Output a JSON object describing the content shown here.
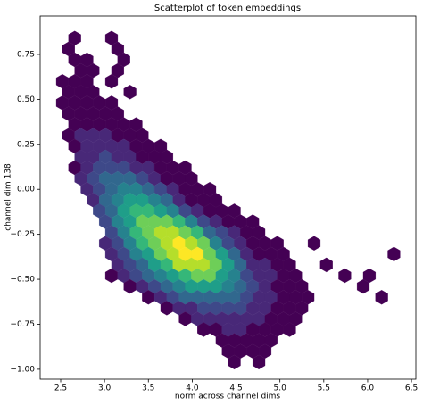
{
  "chart_data": {
    "type": "hexbin",
    "title": "Scatterplot of token embeddings",
    "x_label": "norm across channel dims",
    "y_label": "channel dim 138",
    "xlim": [
      2.266,
      6.55
    ],
    "ylim": [
      -1.055,
      0.963
    ],
    "xticks": [
      2.5,
      {
        "value": 3,
        "label": "3.0"
      },
      3.5,
      {
        "value": 4,
        "label": "4.0"
      },
      4.5,
      {
        "value": 5,
        "label": "5.0"
      },
      5.5,
      {
        "value": 6,
        "label": "6.0"
      },
      6.5
    ],
    "yticks": [
      {
        "value": -1,
        "label": "−1.00"
      },
      {
        "value": -0.75,
        "label": "−0.75"
      },
      {
        "value": -0.5,
        "label": "−0.50"
      },
      {
        "value": -0.25,
        "label": "−0.25"
      },
      {
        "value": 0,
        "label": "0.00"
      },
      {
        "value": 0.25,
        "label": "0.25"
      },
      {
        "value": 0.5,
        "label": "0.50"
      },
      {
        "value": 0.75,
        "label": "0.75"
      }
    ],
    "colormap": [
      "#440154",
      "#482878",
      "#3e4989",
      "#31688e",
      "#26828e",
      "#1f9e89",
      "#35b779",
      "#6ece58",
      "#b5de2b",
      "#fde725"
    ],
    "x": [
      2.66,
      3.08,
      2.59,
      3.15,
      2.66,
      2.8,
      3.22,
      2.73,
      2.87,
      3.15,
      2.52,
      2.66,
      2.8,
      3.08,
      2.59,
      2.73,
      2.87,
      3.29,
      2.52,
      2.66,
      2.8,
      2.94,
      3.08,
      2.59,
      2.73,
      2.87,
      3.01,
      3.15,
      2.66,
      2.8,
      2.94,
      3.08,
      3.22,
      3.36,
      2.59,
      2.73,
      2.87,
      3.01,
      3.15,
      3.29,
      3.43,
      2.66,
      2.8,
      2.94,
      3.08,
      3.22,
      3.36,
      3.5,
      3.64,
      2.73,
      2.87,
      3.01,
      3.15,
      3.29,
      3.43,
      3.57,
      3.71,
      2.66,
      2.8,
      2.94,
      3.08,
      3.22,
      3.36,
      3.5,
      3.64,
      3.78,
      3.92,
      2.73,
      2.87,
      3.01,
      3.15,
      3.29,
      3.43,
      3.57,
      3.71,
      3.85,
      3.99,
      2.8,
      2.94,
      3.08,
      3.22,
      3.36,
      3.5,
      3.64,
      3.78,
      3.92,
      4.06,
      4.2,
      2.87,
      3.01,
      3.15,
      3.29,
      3.43,
      3.57,
      3.71,
      3.85,
      3.99,
      4.13,
      4.27,
      2.94,
      3.08,
      3.22,
      3.36,
      3.5,
      3.64,
      3.78,
      3.92,
      4.06,
      4.2,
      4.34,
      4.48,
      3.01,
      3.15,
      3.29,
      3.43,
      3.57,
      3.71,
      3.85,
      3.99,
      4.13,
      4.27,
      4.41,
      4.55,
      4.69,
      3.08,
      3.22,
      3.36,
      3.5,
      3.64,
      3.78,
      3.92,
      4.06,
      4.2,
      4.34,
      4.48,
      4.62,
      4.76,
      3.01,
      3.15,
      3.29,
      3.43,
      3.57,
      3.71,
      3.85,
      3.99,
      4.13,
      4.27,
      4.41,
      4.55,
      4.69,
      4.83,
      4.97,
      5.39,
      3.08,
      3.22,
      3.36,
      3.5,
      3.64,
      3.78,
      3.92,
      4.06,
      4.2,
      4.34,
      4.48,
      4.62,
      4.76,
      4.9,
      5.04,
      6.3,
      3.15,
      3.29,
      3.43,
      3.57,
      3.71,
      3.85,
      3.99,
      4.13,
      4.27,
      4.41,
      4.55,
      4.69,
      4.83,
      4.97,
      5.11,
      5.53,
      3.08,
      3.22,
      3.36,
      3.5,
      3.64,
      3.78,
      3.92,
      4.06,
      4.2,
      4.34,
      4.48,
      4.62,
      4.76,
      4.9,
      5.04,
      5.18,
      5.74,
      6.02,
      3.29,
      3.43,
      3.57,
      3.71,
      3.85,
      3.99,
      4.13,
      4.27,
      4.41,
      4.55,
      4.69,
      4.83,
      4.97,
      5.11,
      5.25,
      5.95,
      3.5,
      3.64,
      3.78,
      3.92,
      4.06,
      4.2,
      4.34,
      4.48,
      4.62,
      4.76,
      4.9,
      5.04,
      5.18,
      5.32,
      6.16,
      3.71,
      3.85,
      3.99,
      4.13,
      4.27,
      4.41,
      4.55,
      4.69,
      4.83,
      4.97,
      5.11,
      5.25,
      3.92,
      4.06,
      4.2,
      4.34,
      4.48,
      4.62,
      4.76,
      4.9,
      5.04,
      5.18,
      4.13,
      4.27,
      4.41,
      4.55,
      4.69,
      4.83,
      4.97,
      5.11,
      4.34,
      4.48,
      4.62,
      4.76,
      4.9,
      4.41,
      4.55,
      4.69,
      4.83,
      4.48,
      4.76
    ],
    "y": [
      0.84,
      0.84,
      0.78,
      0.78,
      0.72,
      0.72,
      0.72,
      0.66,
      0.66,
      0.66,
      0.6,
      0.6,
      0.6,
      0.6,
      0.54,
      0.54,
      0.54,
      0.54,
      0.48,
      0.48,
      0.48,
      0.48,
      0.48,
      0.42,
      0.42,
      0.42,
      0.42,
      0.42,
      0.36,
      0.36,
      0.36,
      0.36,
      0.36,
      0.36,
      0.3,
      0.3,
      0.3,
      0.3,
      0.3,
      0.3,
      0.3,
      0.24,
      0.24,
      0.24,
      0.24,
      0.24,
      0.24,
      0.24,
      0.24,
      0.18,
      0.18,
      0.18,
      0.18,
      0.18,
      0.18,
      0.18,
      0.18,
      0.12,
      0.12,
      0.12,
      0.12,
      0.12,
      0.12,
      0.12,
      0.12,
      0.12,
      0.12,
      0.06,
      0.06,
      0.06,
      0.06,
      0.06,
      0.06,
      0.06,
      0.06,
      0.06,
      0.06,
      0,
      0,
      0,
      0,
      0,
      0,
      0,
      0,
      0,
      0,
      0,
      -0.06,
      -0.06,
      -0.06,
      -0.06,
      -0.06,
      -0.06,
      -0.06,
      -0.06,
      -0.06,
      -0.06,
      -0.06,
      -0.12,
      -0.12,
      -0.12,
      -0.12,
      -0.12,
      -0.12,
      -0.12,
      -0.12,
      -0.12,
      -0.12,
      -0.12,
      -0.12,
      -0.18,
      -0.18,
      -0.18,
      -0.18,
      -0.18,
      -0.18,
      -0.18,
      -0.18,
      -0.18,
      -0.18,
      -0.18,
      -0.18,
      -0.18,
      -0.24,
      -0.24,
      -0.24,
      -0.24,
      -0.24,
      -0.24,
      -0.24,
      -0.24,
      -0.24,
      -0.24,
      -0.24,
      -0.24,
      -0.24,
      -0.3,
      -0.3,
      -0.3,
      -0.3,
      -0.3,
      -0.3,
      -0.3,
      -0.3,
      -0.3,
      -0.3,
      -0.3,
      -0.3,
      -0.3,
      -0.3,
      -0.3,
      -0.3,
      -0.36,
      -0.36,
      -0.36,
      -0.36,
      -0.36,
      -0.36,
      -0.36,
      -0.36,
      -0.36,
      -0.36,
      -0.36,
      -0.36,
      -0.36,
      -0.36,
      -0.36,
      -0.36,
      -0.42,
      -0.42,
      -0.42,
      -0.42,
      -0.42,
      -0.42,
      -0.42,
      -0.42,
      -0.42,
      -0.42,
      -0.42,
      -0.42,
      -0.42,
      -0.42,
      -0.42,
      -0.42,
      -0.48,
      -0.48,
      -0.48,
      -0.48,
      -0.48,
      -0.48,
      -0.48,
      -0.48,
      -0.48,
      -0.48,
      -0.48,
      -0.48,
      -0.48,
      -0.48,
      -0.48,
      -0.48,
      -0.48,
      -0.48,
      -0.54,
      -0.54,
      -0.54,
      -0.54,
      -0.54,
      -0.54,
      -0.54,
      -0.54,
      -0.54,
      -0.54,
      -0.54,
      -0.54,
      -0.54,
      -0.54,
      -0.54,
      -0.54,
      -0.6,
      -0.6,
      -0.6,
      -0.6,
      -0.6,
      -0.6,
      -0.6,
      -0.6,
      -0.6,
      -0.6,
      -0.6,
      -0.6,
      -0.6,
      -0.6,
      -0.6,
      -0.66,
      -0.66,
      -0.66,
      -0.66,
      -0.66,
      -0.66,
      -0.66,
      -0.66,
      -0.66,
      -0.66,
      -0.66,
      -0.66,
      -0.72,
      -0.72,
      -0.72,
      -0.72,
      -0.72,
      -0.72,
      -0.72,
      -0.72,
      -0.72,
      -0.72,
      -0.78,
      -0.78,
      -0.78,
      -0.78,
      -0.78,
      -0.78,
      -0.78,
      -0.78,
      -0.84,
      -0.84,
      -0.84,
      -0.84,
      -0.84,
      -0.9,
      -0.9,
      -0.9,
      -0.9,
      -0.96,
      -0.96
    ],
    "values": [
      1,
      1,
      1,
      1,
      1,
      1,
      1,
      1,
      1,
      1,
      1,
      2,
      1,
      1,
      2,
      2,
      1,
      1,
      1,
      3,
      4,
      2,
      1,
      3,
      5,
      5,
      3,
      1,
      5,
      7,
      6,
      3,
      2,
      1,
      3,
      8,
      10,
      9,
      5,
      2,
      1,
      6,
      12,
      15,
      12,
      8,
      4,
      2,
      1,
      10,
      18,
      22,
      18,
      12,
      6,
      3,
      1,
      4,
      14,
      24,
      30,
      26,
      18,
      10,
      4,
      2,
      1,
      8,
      22,
      34,
      40,
      34,
      24,
      14,
      6,
      2,
      1,
      10,
      28,
      44,
      50,
      46,
      36,
      22,
      10,
      4,
      2,
      1,
      16,
      36,
      54,
      62,
      60,
      48,
      32,
      16,
      6,
      2,
      1,
      20,
      42,
      62,
      74,
      76,
      66,
      50,
      30,
      14,
      5,
      2,
      1,
      24,
      46,
      68,
      84,
      90,
      86,
      70,
      48,
      26,
      10,
      4,
      2,
      1,
      26,
      48,
      70,
      88,
      98,
      100,
      90,
      70,
      44,
      22,
      8,
      3,
      1,
      8,
      28,
      48,
      70,
      90,
      104,
      110,
      104,
      84,
      56,
      30,
      12,
      4,
      2,
      1,
      1,
      10,
      28,
      46,
      66,
      86,
      102,
      112,
      110,
      92,
      64,
      36,
      16,
      6,
      2,
      1,
      1,
      10,
      26,
      42,
      60,
      78,
      94,
      104,
      100,
      84,
      60,
      36,
      18,
      8,
      3,
      1,
      1,
      2,
      8,
      20,
      34,
      50,
      66,
      80,
      86,
      82,
      68,
      48,
      30,
      16,
      8,
      3,
      1,
      1,
      1,
      4,
      12,
      24,
      38,
      52,
      62,
      66,
      60,
      48,
      34,
      22,
      12,
      6,
      3,
      1,
      1,
      4,
      12,
      22,
      34,
      42,
      44,
      40,
      32,
      22,
      14,
      8,
      4,
      2,
      1,
      1,
      4,
      10,
      18,
      26,
      28,
      26,
      20,
      14,
      8,
      4,
      2,
      1,
      3,
      8,
      14,
      16,
      16,
      12,
      8,
      5,
      2,
      1,
      2,
      5,
      8,
      8,
      6,
      4,
      2,
      1,
      2,
      3,
      3,
      2,
      1,
      1,
      1,
      1,
      1,
      1,
      1
    ]
  }
}
